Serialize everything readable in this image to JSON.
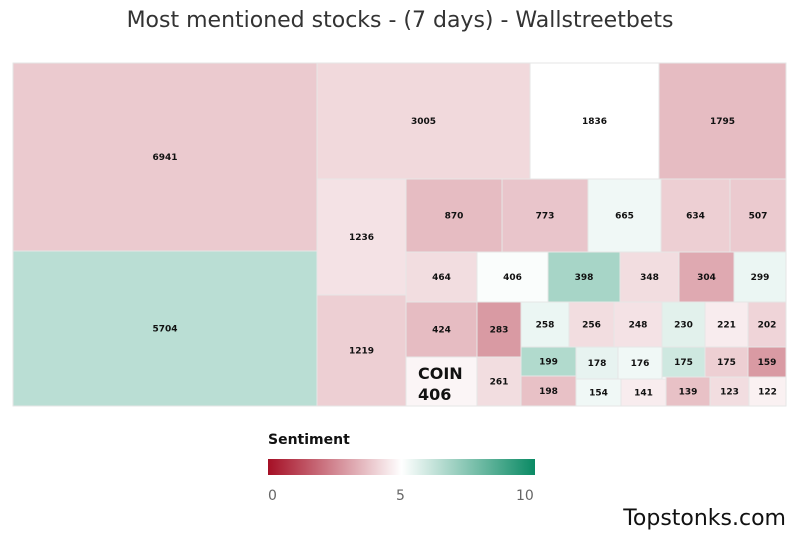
{
  "title": "Most mentioned stocks - (7 days) - Wallstreetbets",
  "brand": "Topstonks.com",
  "colors": {
    "low": "#a50f25",
    "mid": "#ffffff",
    "high": "#0a8a64"
  },
  "chart_data": {
    "type": "treemap",
    "title": "Most mentioned stocks - (7 days) - Wallstreetbets",
    "colorAxis": {
      "title": "Sentiment",
      "min": 0,
      "mid": 5,
      "max": 10,
      "ticks": [
        "0",
        "5",
        "10"
      ]
    },
    "highlight": {
      "name": "COIN",
      "value": 406
    },
    "items": [
      {
        "value": 6941,
        "sentiment": 3.9
      },
      {
        "value": 5704,
        "sentiment": 6.4
      },
      {
        "value": 3005,
        "sentiment": 4.2
      },
      {
        "value": 1836,
        "sentiment": 5.0
      },
      {
        "value": 1795,
        "sentiment": 3.6
      },
      {
        "value": 1236,
        "sentiment": 4.4
      },
      {
        "value": 1219,
        "sentiment": 4.0
      },
      {
        "value": 870,
        "sentiment": 3.6
      },
      {
        "value": 773,
        "sentiment": 3.8
      },
      {
        "value": 665,
        "sentiment": 5.3
      },
      {
        "value": 634,
        "sentiment": 4.0
      },
      {
        "value": 507,
        "sentiment": 3.9
      },
      {
        "value": 464,
        "sentiment": 4.3
      },
      {
        "value": 406,
        "sentiment": 5.1
      },
      {
        "value": 398,
        "sentiment": 6.8
      },
      {
        "value": 348,
        "sentiment": 4.3
      },
      {
        "value": 304,
        "sentiment": 3.2
      },
      {
        "value": 299,
        "sentiment": 5.4
      },
      {
        "value": 424,
        "sentiment": 3.6
      },
      {
        "value": 283,
        "sentiment": 2.9
      },
      {
        "value": 258,
        "sentiment": 5.4
      },
      {
        "value": 256,
        "sentiment": 4.3
      },
      {
        "value": 248,
        "sentiment": 4.4
      },
      {
        "value": 230,
        "sentiment": 5.6
      },
      {
        "value": 221,
        "sentiment": 4.6
      },
      {
        "value": 202,
        "sentiment": 4.1
      },
      {
        "value": 406,
        "sentiment": 4.8
      },
      {
        "value": 261,
        "sentiment": 4.3
      },
      {
        "value": 199,
        "sentiment": 6.6
      },
      {
        "value": 178,
        "sentiment": 5.5
      },
      {
        "value": 176,
        "sentiment": 5.3
      },
      {
        "value": 175,
        "sentiment": 6.0
      },
      {
        "value": 175,
        "sentiment": 4.0
      },
      {
        "value": 159,
        "sentiment": 2.9
      },
      {
        "value": 198,
        "sentiment": 3.7
      },
      {
        "value": 154,
        "sentiment": 5.3
      },
      {
        "value": 141,
        "sentiment": 4.6
      },
      {
        "value": 139,
        "sentiment": 3.7
      },
      {
        "value": 123,
        "sentiment": 4.3
      },
      {
        "value": 122,
        "sentiment": 4.7
      }
    ]
  }
}
